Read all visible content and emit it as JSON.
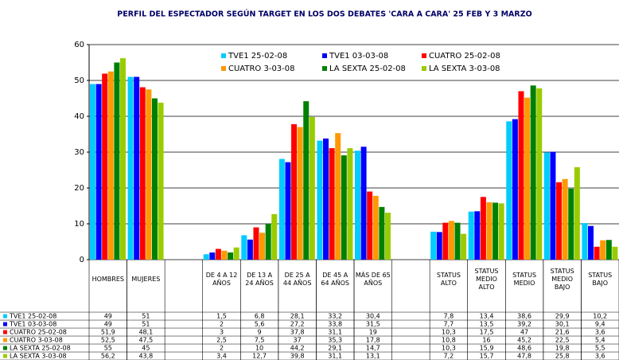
{
  "chart_data": {
    "type": "bar",
    "title": "PERFIL DEL ESPECTADOR  SEGÚN TARGET EN LOS DOS DEBATES 'CARA A CARA' 25 FEB Y 3 MARZO",
    "categories": [
      "HOMBRES",
      "MUJERES",
      null,
      "DE 4 A 12 AÑOS",
      "DE 13 A 24 AÑOS",
      "DE 25 A 44 AÑOS",
      "DE 45 A 64 AÑOS",
      "MÁS DE 65 AÑOS",
      null,
      "STATUS ALTO",
      "STATUS MEDIO ALTO",
      "STATUS MEDIO",
      "STATUS MEDIO BAJO",
      "STATUS BAJO"
    ],
    "series": [
      {
        "name": "TVE1 25-02-08",
        "color": "#00ccff",
        "values": [
          49,
          51,
          null,
          1.5,
          6.8,
          28.1,
          33.2,
          30.4,
          null,
          7.8,
          13.4,
          38.6,
          29.9,
          10.2
        ],
        "value_labels": [
          "49",
          "51",
          null,
          "1,5",
          "6,8",
          "28,1",
          "33,2",
          "30,4",
          null,
          "7,8",
          "13,4",
          "38,6",
          "29,9",
          "10,2"
        ]
      },
      {
        "name": "TVE1 03-03-08",
        "color": "#0000ff",
        "values": [
          49,
          51,
          null,
          2,
          5.6,
          27.2,
          33.8,
          31.5,
          null,
          7.7,
          13.5,
          39.2,
          30.1,
          9.4
        ],
        "value_labels": [
          "49",
          "51",
          null,
          "2",
          "5,6",
          "27,2",
          "33,8",
          "31,5",
          null,
          "7,7",
          "13,5",
          "39,2",
          "30,1",
          "9,4"
        ]
      },
      {
        "name": "CUATRO 25-02-08",
        "color": "#ff0000",
        "values": [
          51.9,
          48.1,
          null,
          3,
          9,
          37.8,
          31.1,
          19,
          null,
          10.3,
          17.5,
          47,
          21.6,
          3.6
        ],
        "value_labels": [
          "51,9",
          "48,1",
          null,
          "3",
          "9",
          "37,8",
          "31,1",
          "19",
          null,
          "10,3",
          "17,5",
          "47",
          "21,6",
          "3,6"
        ]
      },
      {
        "name": "CUATRO 3-03-08",
        "color": "#ff9900",
        "values": [
          52.5,
          47.5,
          null,
          2.5,
          7.5,
          37,
          35.3,
          17.8,
          null,
          10.8,
          16,
          45.2,
          22.5,
          5.4
        ],
        "value_labels": [
          "52,5",
          "47,5",
          null,
          "2,5",
          "7,5",
          "37",
          "35,3",
          "17,8",
          null,
          "10,8",
          "16",
          "45,2",
          "22,5",
          "5,4"
        ]
      },
      {
        "name": "LA SEXTA 25-02-08",
        "color": "#008000",
        "values": [
          55,
          45,
          null,
          2,
          10,
          44.2,
          29.1,
          14.7,
          null,
          10.3,
          15.9,
          48.6,
          19.8,
          5.5
        ],
        "value_labels": [
          "55",
          "45",
          null,
          "2",
          "10",
          "44,2",
          "29,1",
          "14,7",
          null,
          "10,3",
          "15,9",
          "48,6",
          "19,8",
          "5,5"
        ]
      },
      {
        "name": "LA SEXTA 3-03-08",
        "color": "#99cc00",
        "values": [
          56.2,
          43.8,
          null,
          3.4,
          12.7,
          39.8,
          31.1,
          13.1,
          null,
          7.2,
          15.7,
          47.8,
          25.8,
          3.6
        ],
        "value_labels": [
          "56,2",
          "43,8",
          null,
          "3,4",
          "12,7",
          "39,8",
          "31,1",
          "13,1",
          null,
          "7,2",
          "15,7",
          "47,8",
          "25,8",
          "3,6"
        ]
      }
    ],
    "ylim": [
      0,
      60
    ],
    "yticks": [
      0,
      10,
      20,
      30,
      40,
      50,
      60
    ],
    "grid": true,
    "legend": "top"
  }
}
